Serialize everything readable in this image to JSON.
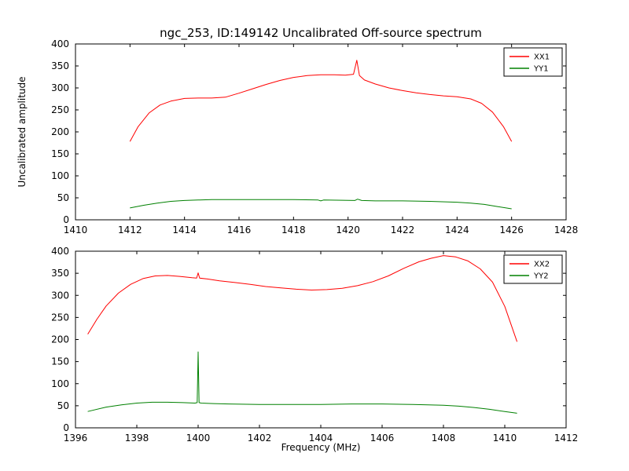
{
  "figure": {
    "title": "ngc_253, ID:149142 Uncalibrated Off-source spectrum",
    "xlabel": "Frequency (MHz)",
    "ylabel": "Uncalibrated amplitude",
    "background_color": "#ffffff",
    "frame_color": "#000000"
  },
  "chart_data": [
    {
      "type": "line",
      "subplot": "top",
      "xlim": [
        1410,
        1428
      ],
      "ylim": [
        0,
        400
      ],
      "xticks": [
        1410,
        1412,
        1414,
        1416,
        1418,
        1420,
        1422,
        1424,
        1426,
        1428
      ],
      "yticks": [
        0,
        50,
        100,
        150,
        200,
        250,
        300,
        350,
        400
      ],
      "grid": false,
      "legend_position": "upper right",
      "series": [
        {
          "name": "XX1",
          "color": "#ff0000",
          "x": [
            1412.0,
            1412.3,
            1412.7,
            1413.1,
            1413.5,
            1414.0,
            1414.5,
            1415.0,
            1415.5,
            1416.0,
            1416.5,
            1417.0,
            1417.5,
            1418.0,
            1418.5,
            1419.0,
            1419.5,
            1419.9,
            1420.2,
            1420.32,
            1420.42,
            1420.6,
            1421.0,
            1421.5,
            1422.0,
            1422.5,
            1423.0,
            1423.5,
            1424.0,
            1424.5,
            1424.9,
            1425.3,
            1425.7,
            1426.0
          ],
          "y": [
            178,
            212,
            243,
            261,
            270,
            276,
            277,
            277,
            279,
            288,
            298,
            308,
            317,
            324,
            328,
            330,
            330,
            329,
            331,
            363,
            328,
            318,
            309,
            300,
            294,
            289,
            285,
            282,
            280,
            275,
            265,
            245,
            212,
            178
          ]
        },
        {
          "name": "YY1",
          "color": "#008000",
          "x": [
            1412.0,
            1412.5,
            1413.0,
            1413.5,
            1414.0,
            1414.5,
            1415.0,
            1416.0,
            1417.0,
            1418.0,
            1418.9,
            1419.0,
            1419.1,
            1420.25,
            1420.35,
            1420.5,
            1421.0,
            1422.0,
            1423.0,
            1424.0,
            1424.5,
            1425.0,
            1425.5,
            1426.0
          ],
          "y": [
            27,
            33,
            38,
            42,
            44,
            45,
            46,
            46,
            46,
            46,
            45,
            43,
            45,
            44,
            47,
            44,
            43,
            43,
            42,
            40,
            38,
            35,
            30,
            25
          ]
        }
      ]
    },
    {
      "type": "line",
      "subplot": "bottom",
      "xlim": [
        1396,
        1412
      ],
      "ylim": [
        0,
        400
      ],
      "xticks": [
        1396,
        1398,
        1400,
        1402,
        1404,
        1406,
        1408,
        1410,
        1412
      ],
      "yticks": [
        0,
        50,
        100,
        150,
        200,
        250,
        300,
        350,
        400
      ],
      "grid": false,
      "legend_position": "upper right",
      "series": [
        {
          "name": "XX2",
          "color": "#ff0000",
          "x": [
            1396.4,
            1396.7,
            1397.0,
            1397.4,
            1397.8,
            1398.2,
            1398.6,
            1399.0,
            1399.4,
            1399.8,
            1399.95,
            1400.0,
            1400.05,
            1400.3,
            1400.7,
            1401.2,
            1401.7,
            1402.2,
            1402.7,
            1403.2,
            1403.7,
            1404.2,
            1404.7,
            1405.2,
            1405.7,
            1406.2,
            1406.7,
            1407.2,
            1407.6,
            1408.0,
            1408.4,
            1408.8,
            1409.2,
            1409.6,
            1410.0,
            1410.4
          ],
          "y": [
            212,
            246,
            276,
            305,
            325,
            338,
            344,
            345,
            343,
            340,
            339,
            351,
            339,
            337,
            333,
            329,
            325,
            320,
            317,
            314,
            312,
            313,
            316,
            322,
            331,
            344,
            361,
            376,
            384,
            390,
            387,
            378,
            360,
            330,
            275,
            195
          ]
        },
        {
          "name": "YY2",
          "color": "#008000",
          "x": [
            1396.4,
            1397.0,
            1397.5,
            1398.0,
            1398.5,
            1399.0,
            1399.5,
            1399.9,
            1399.97,
            1400.0,
            1400.03,
            1400.1,
            1400.5,
            1401.0,
            1402.0,
            1403.0,
            1404.0,
            1405.0,
            1406.0,
            1407.0,
            1408.0,
            1408.5,
            1409.0,
            1409.5,
            1410.0,
            1410.4
          ],
          "y": [
            37,
            47,
            52,
            56,
            58,
            58,
            57,
            56,
            57,
            172,
            57,
            56,
            55,
            54,
            53,
            53,
            53,
            54,
            54,
            53,
            51,
            49,
            46,
            42,
            37,
            33
          ]
        }
      ]
    }
  ]
}
